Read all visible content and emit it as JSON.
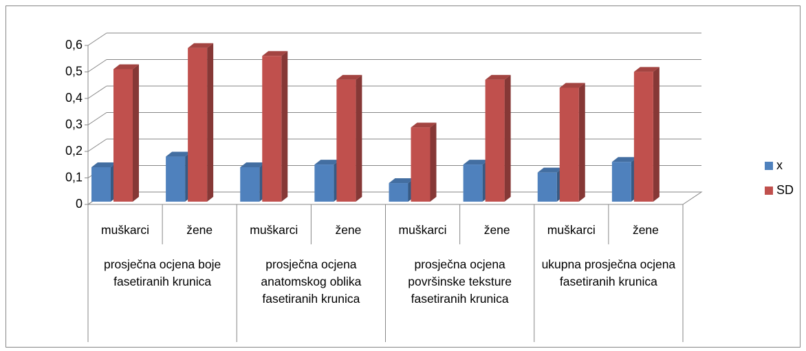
{
  "chart_data": {
    "type": "bar3d",
    "groups": [
      {
        "name": "prosječna ocjena boje fasetiranih krunica",
        "categories": [
          "muškarci",
          "žene"
        ]
      },
      {
        "name": "prosječna ocjena anatomskog oblika fasetiranih krunica",
        "categories": [
          "muškarci",
          "žene"
        ]
      },
      {
        "name": "prosječna ocjena površinske teksture fasetiranih krunica",
        "categories": [
          "muškarci",
          "žene"
        ]
      },
      {
        "name": "ukupna prosječna ocjena fasetiranih krunica",
        "categories": [
          "muškarci",
          "žene"
        ]
      }
    ],
    "series": [
      {
        "name": "x",
        "color": "#4f81bd",
        "values": [
          0.13,
          0.17,
          0.13,
          0.14,
          0.07,
          0.14,
          0.11,
          0.15
        ]
      },
      {
        "name": "SD",
        "color": "#c0504d",
        "values": [
          0.5,
          0.58,
          0.55,
          0.46,
          0.28,
          0.46,
          0.43,
          0.49
        ]
      }
    ],
    "ylim": [
      0,
      0.6
    ],
    "yticks": [
      0,
      {
        "value": 0.1,
        "label": "0,1"
      },
      {
        "value": 0.2,
        "label": "0,2"
      },
      {
        "value": 0.3,
        "label": "0,3"
      },
      {
        "value": 0.4,
        "label": "0,4"
      },
      {
        "value": 0.5,
        "label": "0,5"
      },
      {
        "value": 0.6,
        "label": "0,6"
      }
    ],
    "grid": true,
    "legend": "right"
  }
}
